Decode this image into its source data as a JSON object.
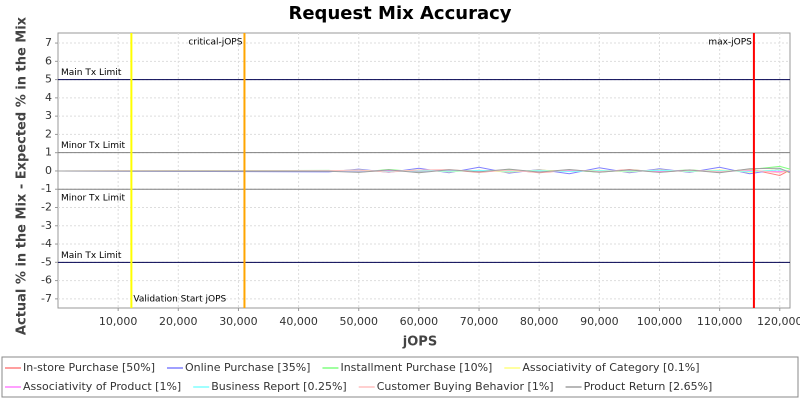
{
  "chart_data": {
    "type": "line",
    "title": "Request Mix Accuracy",
    "x_label": "jOPS",
    "y_label": "Actual % in the Mix - Expected % in the Mix",
    "x": [
      0,
      45000,
      50000,
      55000,
      60000,
      65000,
      70000,
      75000,
      80000,
      85000,
      90000,
      95000,
      100000,
      105000,
      110000,
      115000,
      120000,
      121700
    ],
    "series": [
      {
        "name": "In-store Purchase [50%]",
        "color": "#ff7f7f",
        "values": [
          0,
          0.02,
          -0.05,
          0.03,
          -0.04,
          0.05,
          -0.08,
          0.06,
          -0.1,
          0.04,
          -0.05,
          0.08,
          -0.06,
          0.05,
          -0.07,
          0.1,
          -0.25,
          0.05
        ]
      },
      {
        "name": "Online Purchase [35%]",
        "color": "#8080ff",
        "values": [
          0,
          -0.05,
          0.1,
          -0.08,
          0.15,
          -0.1,
          0.2,
          -0.12,
          0.08,
          -0.15,
          0.18,
          -0.1,
          0.12,
          -0.08,
          0.2,
          -0.15,
          0.1,
          -0.05
        ]
      },
      {
        "name": "Installment Purchase [10%]",
        "color": "#80ff80",
        "values": [
          0,
          0.03,
          -0.06,
          0.08,
          -0.05,
          0.06,
          -0.04,
          0.07,
          -0.05,
          0.04,
          -0.06,
          0.05,
          -0.03,
          0.06,
          -0.05,
          0.08,
          0.25,
          0.1
        ]
      },
      {
        "name": "Associativity of Category [0.1%]",
        "color": "#ffff80",
        "values": [
          0,
          0,
          0.05,
          -0.04,
          0.06,
          -0.05,
          0.04,
          -0.06,
          0.05,
          -0.03,
          0.04,
          -0.05,
          0.06,
          -0.04,
          0.05,
          -0.06,
          0.08,
          -0.1
        ]
      },
      {
        "name": "Associativity of Product [1%]",
        "color": "#ff80ff",
        "values": [
          0,
          0,
          -0.02,
          0.03,
          -0.02,
          0.04,
          -0.03,
          0.02,
          -0.04,
          0.03,
          -0.02,
          0.03,
          -0.02,
          0.04,
          -0.03,
          0.02,
          -0.04,
          0.02
        ]
      },
      {
        "name": "Business Report [0.25%]",
        "color": "#80ffff",
        "values": [
          0,
          0.01,
          0.02,
          -0.03,
          0.02,
          -0.02,
          0.03,
          -0.02,
          0.02,
          -0.03,
          0.02,
          -0.01,
          0.03,
          -0.02,
          0.02,
          -0.03,
          0.05,
          0.02
        ]
      },
      {
        "name": "Customer Buying Behavior [1%]",
        "color": "#ffc0c0",
        "values": [
          0,
          0.02,
          0.04,
          -0.06,
          0.05,
          0.08,
          -0.05,
          0.04,
          -0.08,
          0.06,
          -0.04,
          0.05,
          -0.06,
          0.04,
          -0.05,
          0.06,
          -0.1,
          0.05
        ]
      },
      {
        "name": "Product Return [2.65%]",
        "color": "#a0a0a0",
        "values": [
          0,
          -0.02,
          -0.08,
          0.06,
          -0.1,
          0.07,
          -0.05,
          0.1,
          -0.06,
          0.08,
          -0.07,
          0.06,
          -0.08,
          0.05,
          -0.1,
          0.12,
          0.15,
          -0.1
        ]
      }
    ],
    "xlim": [
      0,
      121700
    ],
    "ylim": [
      -7.5,
      7.55
    ],
    "xticks": [
      {
        "value": 10000,
        "label": "10,000"
      },
      {
        "value": 20000,
        "label": "20,000"
      },
      {
        "value": 30000,
        "label": "30,000"
      },
      {
        "value": 40000,
        "label": "40,000"
      },
      {
        "value": 50000,
        "label": "50,000"
      },
      {
        "value": 60000,
        "label": "60,000"
      },
      {
        "value": 70000,
        "label": "70,000"
      },
      {
        "value": 80000,
        "label": "80,000"
      },
      {
        "value": 90000,
        "label": "90,000"
      },
      {
        "value": 100000,
        "label": "100,000"
      },
      {
        "value": 110000,
        "label": "110,000"
      },
      {
        "value": 120000,
        "label": "120,000"
      }
    ],
    "yticks": [
      -7,
      -6,
      -5,
      -4,
      -3,
      -2,
      -1,
      0,
      1,
      2,
      3,
      4,
      5,
      6,
      7
    ],
    "grid": true,
    "legend": "bottom",
    "limits": [
      {
        "value": 5,
        "label": "Main Tx Limit",
        "color": "#000050"
      },
      {
        "value": 1,
        "label": "Minor Tx Limit",
        "color": "#808080"
      },
      {
        "value": -1,
        "label": "Minor Tx Limit",
        "color": "#808080"
      },
      {
        "value": -5,
        "label": "Main Tx Limit",
        "color": "#000050"
      }
    ],
    "markers": [
      {
        "value": 12200,
        "label": "Validation Start jOPS",
        "color": "#ffff00"
      },
      {
        "value": 31000,
        "label": "critical-jOPS",
        "color": "#ffa500"
      },
      {
        "value": 115700,
        "label": "max-jOPS",
        "color": "#ff0000"
      }
    ]
  }
}
